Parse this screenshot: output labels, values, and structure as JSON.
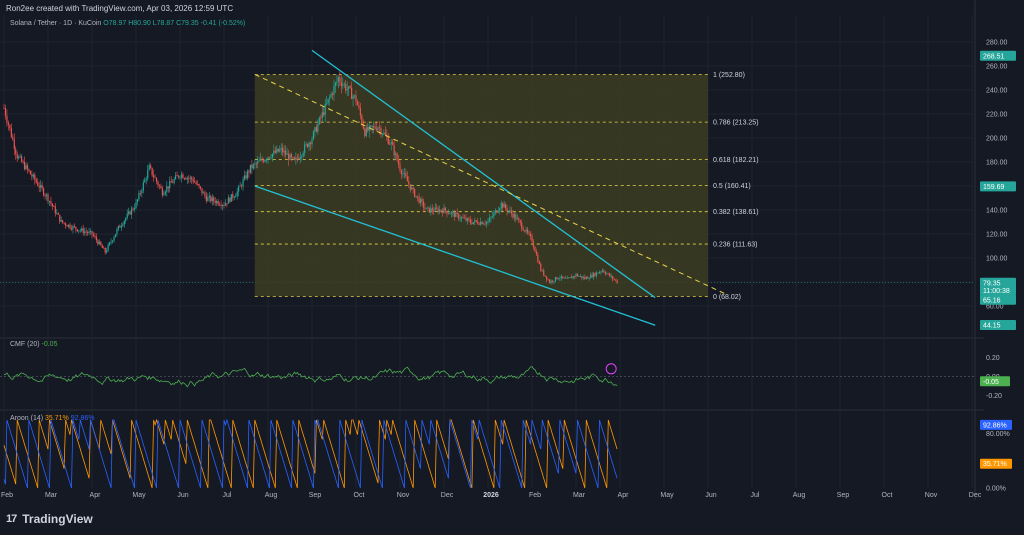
{
  "header": {
    "credit": "Ron2ee created with TradingView.com, Apr 03, 2026 12:59 UTC"
  },
  "legend": {
    "symbol": "Solana / Tether · 1D · KuCoin",
    "open": "O78.97",
    "high": "H80.90",
    "low": "L78.87",
    "close": "C79.35",
    "change": "-0.41 (-0.52%)"
  },
  "brand": {
    "logo": "17",
    "name": "TradingView"
  },
  "colors": {
    "background": "#151924",
    "up": "#26a69a",
    "down": "#ef5350",
    "trendline": "#22c1d6",
    "fib": "#e6d44a",
    "fib_fill": "#3b3d22",
    "cmf": "#4caf50",
    "aroon_up": "#ff9800",
    "aroon_down": "#2962ff"
  },
  "chart_data": [
    {
      "type": "candlestick",
      "title": "Solana / Tether · 1D · KuCoin",
      "y_ticks": [
        60,
        80,
        100,
        120,
        140,
        160,
        180,
        200,
        220,
        240,
        260,
        280
      ],
      "ylim": [
        40,
        290
      ],
      "x_ticks": [
        "Feb",
        "Mar",
        "Apr",
        "May",
        "Jun",
        "Jul",
        "Aug",
        "Sep",
        "Oct",
        "Nov",
        "Dec",
        "2026",
        "Feb",
        "Mar",
        "Apr",
        "May",
        "Jun",
        "Jul",
        "Aug",
        "Sep",
        "Oct",
        "Nov",
        "Dec"
      ],
      "x_tick_months": [
        0,
        1,
        2,
        3,
        4,
        5,
        6,
        7,
        8,
        9,
        10,
        11,
        12,
        13,
        14,
        15,
        16,
        17,
        18,
        19,
        20,
        21,
        22
      ],
      "price_path": [
        [
          0,
          225
        ],
        [
          0.3,
          185
        ],
        [
          0.6,
          170
        ],
        [
          1.0,
          150
        ],
        [
          1.3,
          130
        ],
        [
          1.6,
          125
        ],
        [
          2.0,
          120
        ],
        [
          2.3,
          105
        ],
        [
          2.6,
          125
        ],
        [
          3.0,
          145
        ],
        [
          3.3,
          175
        ],
        [
          3.6,
          155
        ],
        [
          4.0,
          170
        ],
        [
          4.3,
          165
        ],
        [
          4.6,
          150
        ],
        [
          5.0,
          145
        ],
        [
          5.3,
          155
        ],
        [
          5.6,
          175
        ],
        [
          6.0,
          185
        ],
        [
          6.3,
          190
        ],
        [
          6.6,
          180
        ],
        [
          7.0,
          200
        ],
        [
          7.3,
          225
        ],
        [
          7.6,
          250
        ],
        [
          8.0,
          232
        ],
        [
          8.2,
          205
        ],
        [
          8.5,
          210
        ],
        [
          8.8,
          195
        ],
        [
          9.0,
          175
        ],
        [
          9.3,
          155
        ],
        [
          9.6,
          140
        ],
        [
          10.0,
          140
        ],
        [
          10.3,
          135
        ],
        [
          10.6,
          130
        ],
        [
          11.0,
          130
        ],
        [
          11.3,
          145
        ],
        [
          11.6,
          135
        ],
        [
          12.0,
          115
        ],
        [
          12.2,
          90
        ],
        [
          12.4,
          80
        ],
        [
          12.6,
          84
        ],
        [
          12.8,
          82
        ],
        [
          13.0,
          86
        ],
        [
          13.2,
          83
        ],
        [
          13.4,
          86
        ],
        [
          13.6,
          90
        ],
        [
          13.8,
          84
        ],
        [
          13.96,
          79.35
        ]
      ],
      "markers": [
        {
          "label": "268.51",
          "value": 268.51,
          "color": "#26a69a"
        },
        {
          "label": "159.69",
          "value": 159.69,
          "color": "#26a69a"
        },
        {
          "label": "79.35",
          "value": 79.35,
          "color": "#26a69a"
        },
        {
          "label": "11:00:38",
          "value": 73.0,
          "color": "#26a69a"
        },
        {
          "label": "65.16",
          "value": 65.16,
          "color": "#26a69a"
        },
        {
          "label": "44.15",
          "value": 44.15,
          "color": "#26a69a"
        }
      ],
      "fibonacci": {
        "start_month": 5.7,
        "end_month": 16.0,
        "levels": [
          {
            "label": "1 (252.80)",
            "value": 252.8
          },
          {
            "label": "0.786 (213.25)",
            "value": 213.25
          },
          {
            "label": "0.618 (182.21)",
            "value": 182.21
          },
          {
            "label": "0.5 (160.41)",
            "value": 160.41
          },
          {
            "label": "0.382 (138.61)",
            "value": 138.61
          },
          {
            "label": "0.236 (111.63)",
            "value": 111.63
          },
          {
            "label": "0 (68.02)",
            "value": 68.02
          }
        ]
      },
      "trendlines": [
        {
          "from": [
            7.0,
            273
          ],
          "to": [
            14.8,
            67
          ]
        },
        {
          "from": [
            5.7,
            160
          ],
          "to": [
            14.8,
            44
          ]
        },
        {
          "from": [
            5.7,
            253
          ],
          "to": [
            16.4,
            70
          ],
          "dashed": true
        }
      ],
      "annotations": [
        {
          "month": 13.8,
          "value": 16
        }
      ]
    },
    {
      "type": "line",
      "title": "CMF (20)",
      "value_label": "-0.05",
      "y_ticks": [
        "0.20",
        "0.00",
        "-0.20"
      ],
      "ylim": [
        -0.3,
        0.3
      ],
      "marker": {
        "label": "-0.05",
        "value": -0.05
      },
      "baseline": 0
    },
    {
      "type": "line",
      "title": "Aroon (14)",
      "series": [
        {
          "name": "Aroon Up",
          "label": "35.71%",
          "color": "#ff9800"
        },
        {
          "name": "Aroon Down",
          "label": "92.86%",
          "color": "#2962ff"
        }
      ],
      "y_ticks": [
        "80.00%",
        "0.00%"
      ],
      "ylim": [
        0,
        100
      ],
      "markers": [
        {
          "label": "92.86%",
          "value": 92.86,
          "color": "#2962ff"
        },
        {
          "label": "35.71%",
          "value": 35.71,
          "color": "#ff9800"
        }
      ]
    }
  ]
}
